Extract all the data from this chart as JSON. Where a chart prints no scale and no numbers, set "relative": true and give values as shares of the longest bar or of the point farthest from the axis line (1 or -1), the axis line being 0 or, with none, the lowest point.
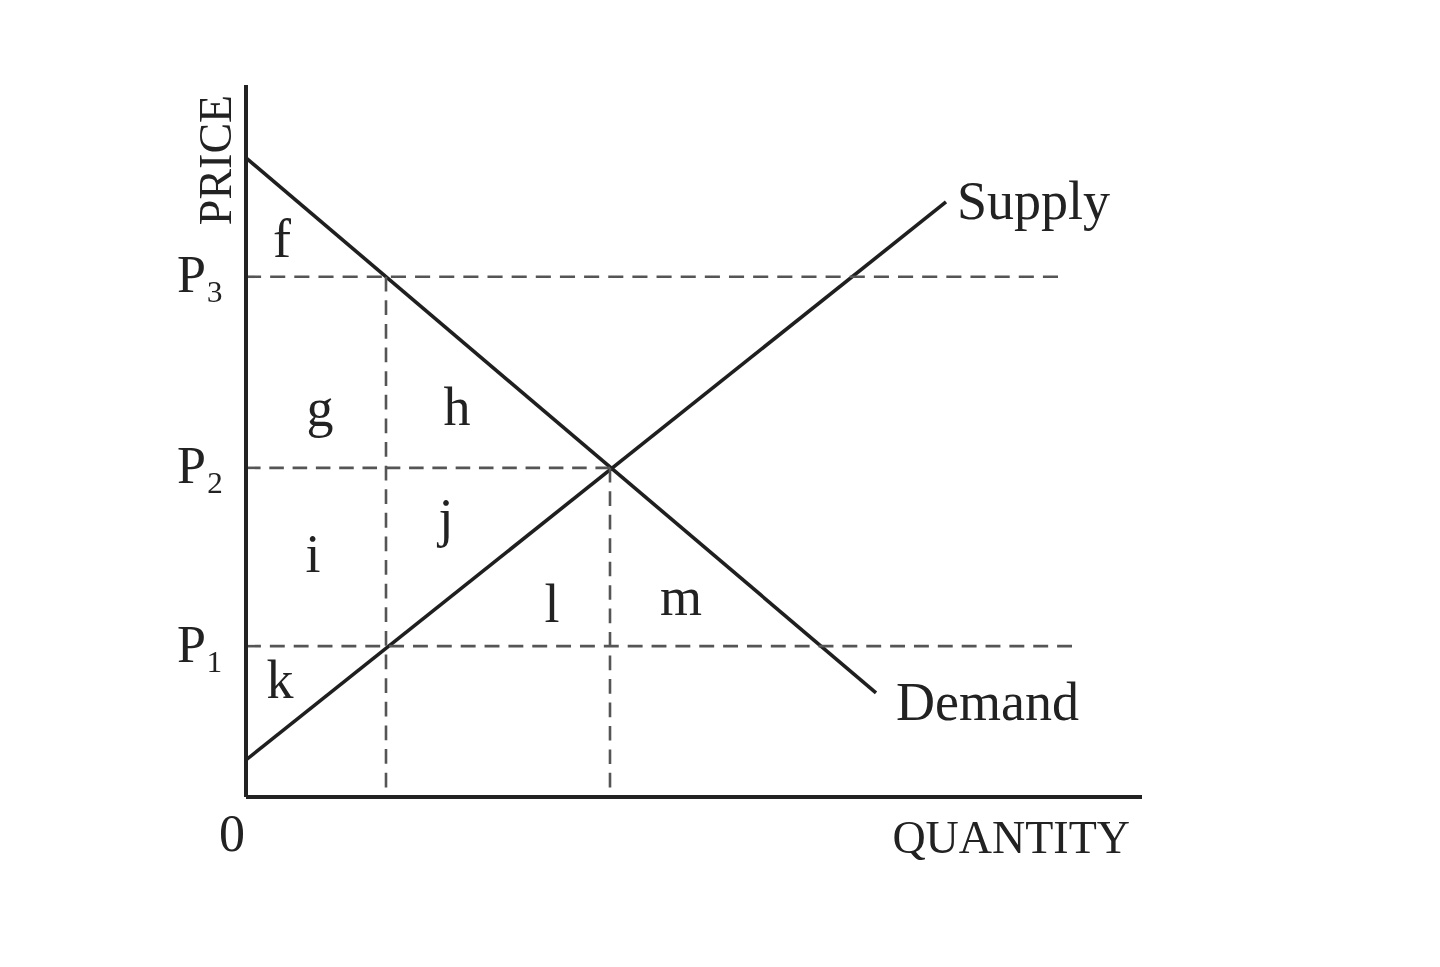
{
  "chart_data": {
    "type": "line",
    "relative": true,
    "xlabel": "QUANTITY",
    "ylabel": "PRICE",
    "categories": [
      null,
      null,
      null,
      null,
      null,
      null,
      null,
      null,
      null,
      null,
      null,
      null,
      null,
      null,
      null,
      null,
      null,
      null,
      null,
      null,
      null,
      null,
      null,
      null,
      null,
      null,
      null,
      null,
      null,
      null,
      null,
      null,
      null,
      null,
      null,
      null,
      null,
      null,
      null,
      null,
      null,
      null,
      null,
      null,
      null,
      null,
      null,
      null,
      null,
      null,
      null,
      null,
      null,
      null,
      null,
      null,
      null,
      null,
      null,
      null,
      null,
      null,
      null,
      null,
      null
    ],
    "series": [
      {
        "name": "Demand",
        "color": "#1f1f1f",
        "values": [
          1,
          null,
          null,
          null,
          null,
          null,
          null,
          null,
          null,
          null,
          null,
          null,
          null,
          null,
          null,
          null,
          null,
          null,
          null,
          null,
          null,
          null,
          null,
          null,
          null,
          null,
          null,
          null,
          null,
          null,
          null,
          null,
          null,
          null,
          null,
          null,
          null,
          null,
          null,
          null,
          null,
          null,
          null,
          null,
          null,
          0.163,
          null,
          null,
          null,
          null,
          null,
          null,
          null,
          null,
          null,
          null,
          null,
          null,
          null,
          null,
          null,
          null,
          null,
          null,
          null
        ]
      },
      {
        "name": "Supply",
        "color": "#1f1f1f",
        "values": [
          0.058,
          null,
          null,
          null,
          null,
          null,
          null,
          null,
          null,
          null,
          null,
          null,
          null,
          null,
          null,
          null,
          null,
          null,
          null,
          null,
          null,
          null,
          null,
          null,
          null,
          null,
          null,
          null,
          null,
          null,
          null,
          null,
          null,
          null,
          null,
          null,
          null,
          null,
          null,
          null,
          null,
          null,
          null,
          null,
          null,
          null,
          null,
          null,
          null,
          null,
          0.931,
          null,
          null,
          null,
          null,
          null,
          null,
          null,
          null,
          null,
          null,
          null,
          null,
          null,
          null
        ]
      },
      {
        "name": "P₃",
        "color": "#555555",
        "line_style": "dashed",
        "values": [
          0.814,
          null,
          null,
          null,
          null,
          null,
          null,
          null,
          null,
          null,
          null,
          null,
          null,
          null,
          null,
          null,
          null,
          null,
          null,
          null,
          null,
          null,
          null,
          null,
          null,
          null,
          null,
          null,
          null,
          null,
          null,
          null,
          null,
          null,
          null,
          null,
          null,
          null,
          null,
          null,
          null,
          null,
          null,
          null,
          null,
          null,
          null,
          null,
          null,
          null,
          null,
          null,
          null,
          null,
          null,
          null,
          null,
          null,
          0.814,
          null,
          null,
          null,
          null,
          null,
          null
        ]
      },
      {
        "name": "P₂",
        "color": "#555555",
        "line_style": "dashed",
        "values": [
          0.515,
          null,
          null,
          null,
          null,
          null,
          null,
          null,
          null,
          null,
          null,
          null,
          null,
          null,
          null,
          null,
          null,
          null,
          null,
          null,
          null,
          null,
          null,
          null,
          null,
          null,
          0.515,
          null,
          null,
          null,
          null,
          null,
          null,
          null,
          null,
          null,
          null,
          null,
          null,
          null,
          null,
          null,
          null,
          null,
          null,
          null,
          null,
          null,
          null,
          null,
          null,
          null,
          null,
          null,
          null,
          null,
          null,
          null,
          null,
          null,
          null,
          null,
          null,
          null,
          null
        ]
      },
      {
        "name": "P₁",
        "color": "#555555",
        "line_style": "dashed",
        "values": [
          0.236,
          null,
          null,
          null,
          null,
          null,
          null,
          null,
          null,
          null,
          null,
          null,
          null,
          null,
          null,
          null,
          null,
          null,
          null,
          null,
          null,
          null,
          null,
          null,
          null,
          null,
          null,
          null,
          null,
          null,
          null,
          null,
          null,
          null,
          null,
          null,
          null,
          null,
          null,
          null,
          null,
          null,
          null,
          null,
          null,
          null,
          null,
          null,
          null,
          null,
          null,
          null,
          null,
          null,
          null,
          null,
          null,
          null,
          null,
          0.236,
          null,
          null,
          null,
          null,
          null
        ]
      },
      {
        "type": "step",
        "color": "#555555",
        "line_style": "dashed",
        "values": [
          null,
          null,
          null,
          null,
          null,
          null,
          null,
          null,
          null,
          0,
          0.814,
          null,
          null,
          null,
          null,
          null,
          null,
          null,
          null,
          null,
          null,
          null,
          null,
          null,
          null,
          null,
          null,
          null,
          null,
          null,
          null,
          null,
          null,
          null,
          null,
          null,
          null,
          null,
          null,
          null,
          null,
          null,
          null,
          null,
          null,
          null,
          null,
          null,
          null,
          null,
          null,
          null,
          null,
          null,
          null,
          null,
          null,
          null,
          null,
          null,
          null,
          null,
          null,
          null,
          null
        ]
      },
      {
        "type": "step",
        "color": "#555555",
        "line_style": "dashed",
        "values": [
          null,
          null,
          null,
          null,
          null,
          null,
          null,
          null,
          null,
          null,
          null,
          null,
          null,
          null,
          null,
          null,
          null,
          null,
          null,
          null,
          null,
          null,
          null,
          null,
          null,
          0,
          0.515,
          null,
          null,
          null,
          null,
          null,
          null,
          null,
          null,
          null,
          null,
          null,
          null,
          null,
          null,
          null,
          null,
          null,
          null,
          null,
          null,
          null,
          null,
          null,
          null,
          null,
          null,
          null,
          null,
          null,
          null,
          null,
          null,
          null,
          null,
          null,
          null,
          null,
          null
        ]
      }
    ],
    "annotations": [
      "f",
      "g",
      "h",
      "i",
      "j",
      "k",
      "l",
      "m",
      "0"
    ]
  }
}
